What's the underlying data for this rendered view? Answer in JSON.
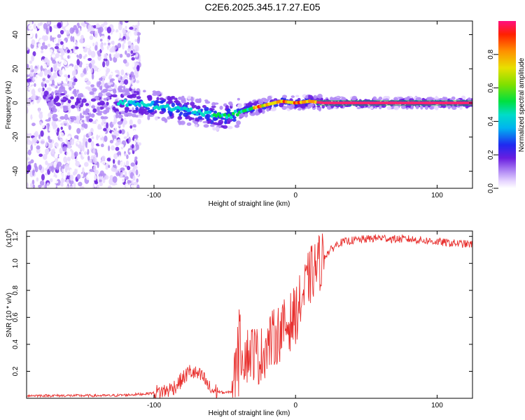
{
  "title": "C2E6.2025.345.17.27.E05",
  "chart_data": [
    {
      "type": "heatmap",
      "name": "spectrogram",
      "xlabel": "Height of straight line (km)",
      "ylabel": "Frequency (Hz)",
      "xlim": [
        -190,
        125
      ],
      "ylim": [
        -50,
        48
      ],
      "xticks": [
        -100,
        0,
        100
      ],
      "yticks": [
        -40,
        -20,
        0,
        20,
        40
      ],
      "colorbar": {
        "label": "Normalized spectral amplitude",
        "range": [
          0,
          1
        ],
        "ticks": [
          0.0,
          0.2,
          0.4,
          0.6,
          0.8
        ]
      },
      "ridge": {
        "x": [
          -125,
          -110,
          -95,
          -80,
          -65,
          -55,
          -45,
          -38,
          -30,
          -20,
          -10,
          0,
          10,
          20,
          125
        ],
        "y": [
          0,
          0,
          -2,
          -4,
          -6,
          -8,
          -7,
          -5,
          -3,
          -1,
          1,
          0,
          1,
          0,
          0
        ],
        "peak_amplitude": 1.0
      }
    },
    {
      "type": "line",
      "name": "snr",
      "xlabel": "Height of straight line (km)",
      "ylabel": "SNR (10 * v/v)",
      "scale_label": "(x10",
      "scale_exp": "4",
      "scale_close": ")",
      "xlim": [
        -190,
        125
      ],
      "ylim": [
        0,
        1.24
      ],
      "xticks": [
        -100,
        0,
        100
      ],
      "yticks": [
        0.2,
        0.4,
        0.6,
        0.8,
        1.0,
        1.2
      ],
      "color": "#e8302e",
      "x": [
        -190,
        -160,
        -130,
        -110,
        -100,
        -90,
        -85,
        -80,
        -75,
        -70,
        -65,
        -60,
        -55,
        -50,
        -45,
        -42,
        -40,
        -38,
        -35,
        -30,
        -25,
        -20,
        -15,
        -10,
        -5,
        0,
        5,
        10,
        15,
        20,
        25,
        30,
        40,
        50,
        60,
        70,
        80,
        90,
        100,
        110,
        125
      ],
      "y": [
        0.02,
        0.02,
        0.02,
        0.03,
        0.04,
        0.06,
        0.09,
        0.14,
        0.2,
        0.18,
        0.15,
        0.06,
        0.05,
        0.04,
        0.05,
        0.2,
        0.45,
        0.35,
        0.32,
        0.35,
        0.3,
        0.4,
        0.45,
        0.5,
        0.55,
        0.62,
        0.75,
        0.9,
        0.98,
        1.05,
        1.1,
        1.15,
        1.17,
        1.18,
        1.19,
        1.18,
        1.18,
        1.17,
        1.16,
        1.15,
        1.14
      ]
    }
  ]
}
